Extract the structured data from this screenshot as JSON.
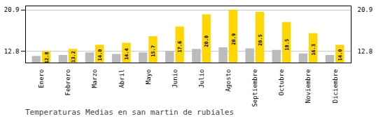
{
  "chart_data": {
    "type": "bar",
    "title": "Temperaturas Medias en san martin de rubiales",
    "categories": [
      "Enero",
      "Febrero",
      "Marzo",
      "Abril",
      "Mayo",
      "Junio",
      "Julio",
      "Agosto",
      "Septiembre",
      "Octubre",
      "Noviembre",
      "Diciembre"
    ],
    "series": [
      {
        "color": "#BBBBBB",
        "values": [
          11.8,
          12.0,
          12.5,
          12.2,
          12.5,
          12.8,
          13.2,
          13.5,
          13.3,
          13.0,
          12.3,
          12.0
        ]
      },
      {
        "color": "#FFD700",
        "values": [
          12.8,
          13.2,
          14.0,
          14.4,
          15.7,
          17.6,
          20.0,
          20.9,
          20.5,
          18.5,
          16.3,
          14.0
        ],
        "value_labels": [
          "12.8",
          "13.2",
          "14.0",
          "14.4",
          "15.7",
          "17.6",
          "20.0",
          "20.9",
          "20.5",
          "18.5",
          "16.3",
          "14.0"
        ],
        "data_labels": true
      }
    ],
    "ylim": [
      10.5,
      21.736
    ],
    "yticks": [
      12.8,
      20.9
    ],
    "y2lim": [
      10.5,
      21.736
    ],
    "y2ticks": [
      12.8,
      20.9
    ],
    "grid": true
  }
}
